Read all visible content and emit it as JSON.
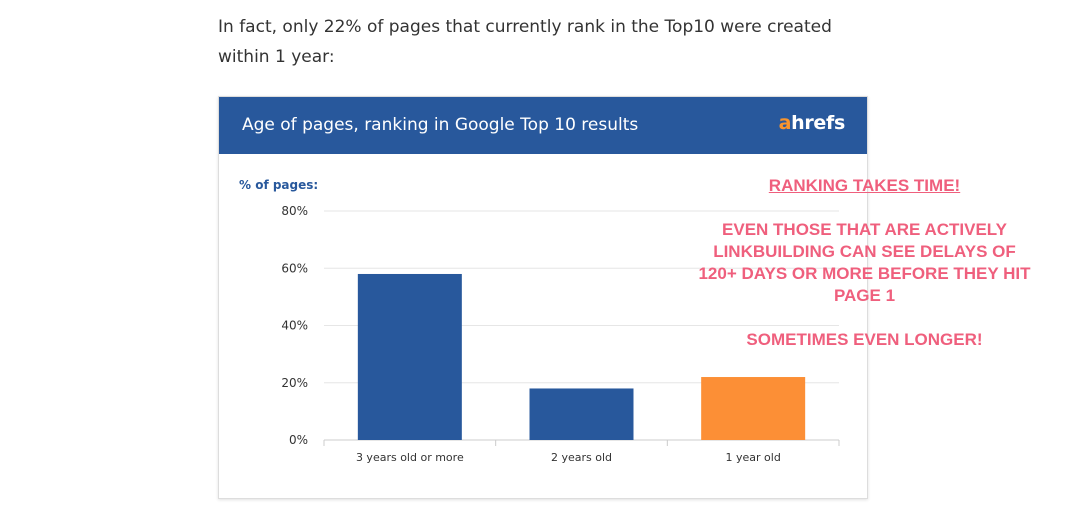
{
  "article": {
    "intro": "In fact, only 22% of pages that currently rank in the Top10 were created within 1 year:"
  },
  "card": {
    "title": "Age of pages, ranking in Google Top 10 results",
    "logo_a": "a",
    "logo_rest": "hrefs"
  },
  "annotation": {
    "heading": "RANKING TAKES TIME!",
    "body": "EVEN THOSE THAT ARE ACTIVELY LINKBUILDING CAN SEE DELAYS OF 120+ DAYS OR MORE BEFORE THEY HIT PAGE 1",
    "footer": "SOMETIMES EVEN LONGER!"
  },
  "colors": {
    "header": "#28589c",
    "bar_primary": "#28589c",
    "bar_highlight": "#fc8f36",
    "annotation": "#ef5f7d",
    "logo_accent": "#f7942d"
  },
  "chart_data": {
    "type": "bar",
    "ylabel": "% of pages:",
    "categories": [
      "3 years old or more",
      "2 years old",
      "1 year old"
    ],
    "values": [
      58,
      18,
      22
    ],
    "ylim": [
      0,
      80
    ],
    "yticks": [
      0,
      20,
      40,
      60,
      80
    ],
    "ytick_labels": [
      "0%",
      "20%",
      "40%",
      "60%",
      "80%"
    ],
    "highlight_index": 2,
    "grid": true
  }
}
